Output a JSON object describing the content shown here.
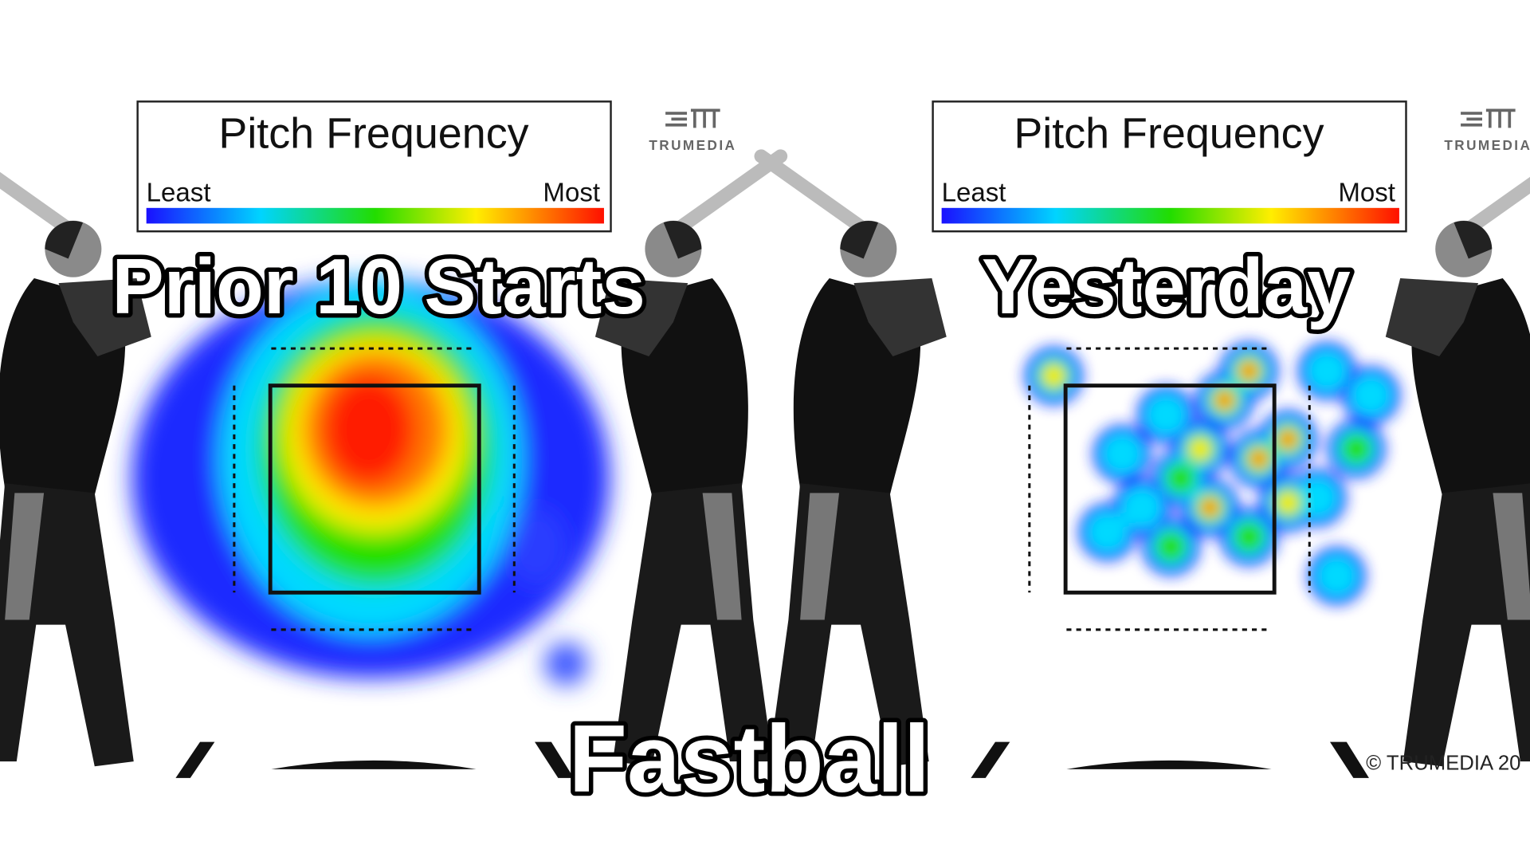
{
  "panels": [
    {
      "legend": {
        "title": "Pitch Frequency",
        "low_label": "Least",
        "high_label": "Most"
      },
      "logo": "TRUMEDIA",
      "label": "Prior 10 Starts"
    },
    {
      "legend": {
        "title": "Pitch Frequency",
        "low_label": "Least",
        "high_label": "Most"
      },
      "logo": "TRUMEDIA",
      "label": "Yesterday"
    }
  ],
  "caption": "Fastball",
  "copyright": "© TRUMEDIA 20"
}
